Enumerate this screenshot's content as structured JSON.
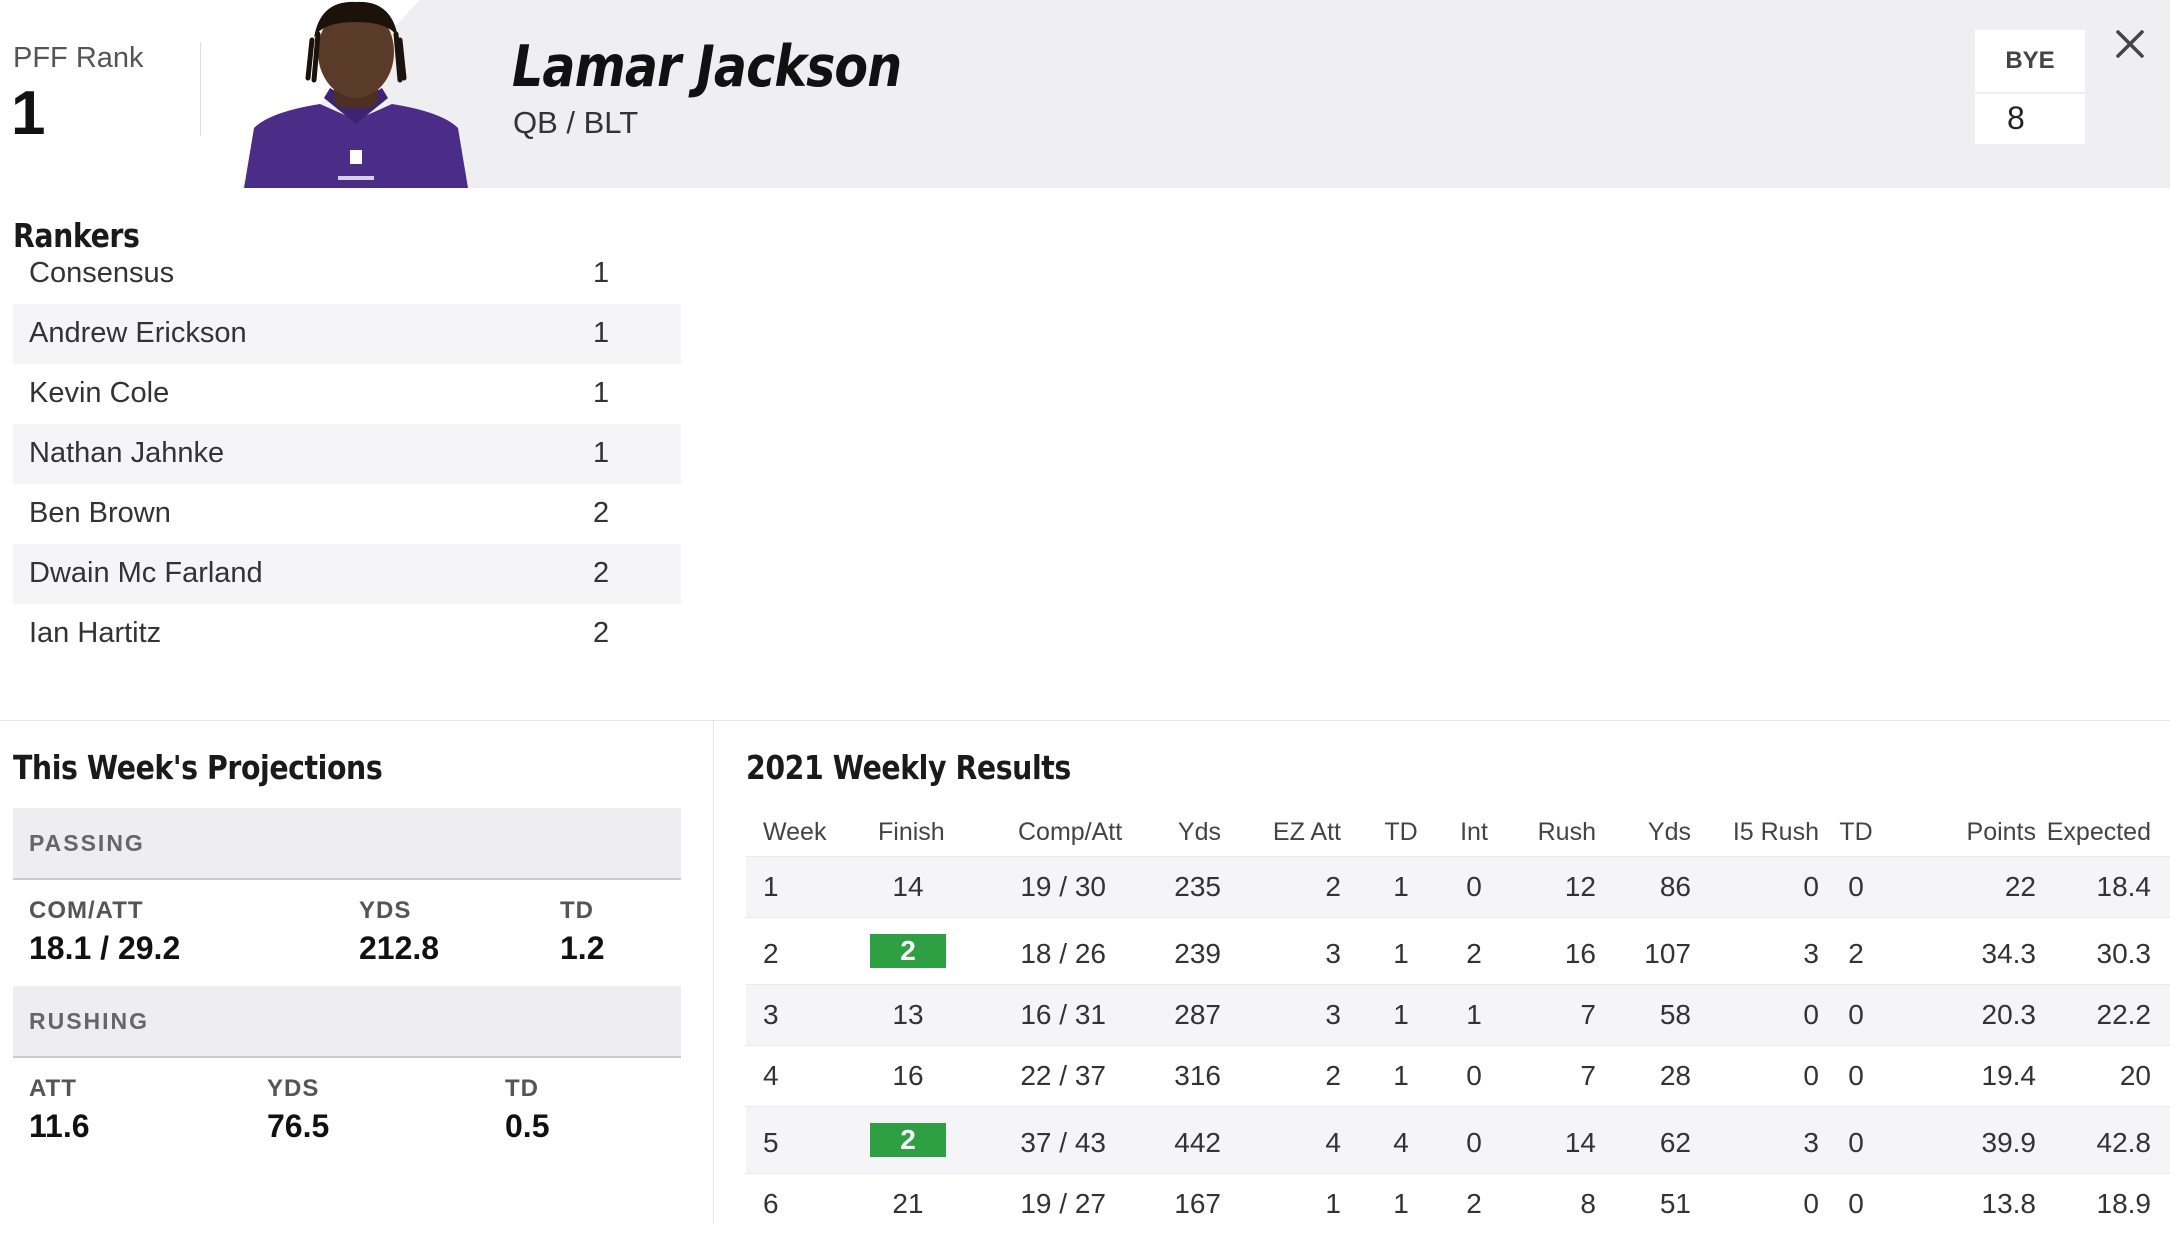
{
  "header": {
    "rank_label": "PFF Rank",
    "rank_value": "1",
    "player_name": "Lamar Jackson",
    "position_team": "QB / BLT",
    "bye_label": "BYE",
    "bye_value": "8",
    "team_color": "#4b2c86"
  },
  "rankers": {
    "title": "Rankers",
    "items": [
      {
        "name": "Consensus",
        "rank": "1"
      },
      {
        "name": "Andrew Erickson",
        "rank": "1"
      },
      {
        "name": "Kevin Cole",
        "rank": "1"
      },
      {
        "name": "Nathan Jahnke",
        "rank": "1"
      },
      {
        "name": "Ben Brown",
        "rank": "2"
      },
      {
        "name": "Dwain Mc Farland",
        "rank": "2"
      },
      {
        "name": "Ian Hartitz",
        "rank": "2"
      }
    ]
  },
  "projections": {
    "title": "This Week's Projections",
    "passing": {
      "label": "PASSING",
      "stats": [
        {
          "label": "COM/ATT",
          "value": "18.1 / 29.2"
        },
        {
          "label": "YDS",
          "value": "212.8"
        },
        {
          "label": "TD",
          "value": "1.2"
        }
      ]
    },
    "rushing": {
      "label": "RUSHING",
      "stats": [
        {
          "label": "ATT",
          "value": "11.6"
        },
        {
          "label": "YDS",
          "value": "76.5"
        },
        {
          "label": "TD",
          "value": "0.5"
        }
      ]
    }
  },
  "results": {
    "title": "2021 Weekly Results",
    "columns": [
      "Week",
      "Finish",
      "Comp/Att",
      "Yds",
      "EZ Att",
      "TD",
      "Int",
      "Rush",
      "Yds",
      "I5 Rush",
      "TD",
      "Points",
      "Expected"
    ],
    "highlight_color": "#2ea043",
    "rows": [
      {
        "week": "1",
        "finish": "14",
        "highlight": false,
        "comp_att": "19 / 30",
        "yds": "235",
        "ez_att": "2",
        "td": "1",
        "int": "0",
        "rush": "12",
        "rush_yds": "86",
        "i5_rush": "0",
        "rush_td": "0",
        "points": "22",
        "expected": "18.4"
      },
      {
        "week": "2",
        "finish": "2",
        "highlight": true,
        "comp_att": "18 / 26",
        "yds": "239",
        "ez_att": "3",
        "td": "1",
        "int": "2",
        "rush": "16",
        "rush_yds": "107",
        "i5_rush": "3",
        "rush_td": "2",
        "points": "34.3",
        "expected": "30.3"
      },
      {
        "week": "3",
        "finish": "13",
        "highlight": false,
        "comp_att": "16 / 31",
        "yds": "287",
        "ez_att": "3",
        "td": "1",
        "int": "1",
        "rush": "7",
        "rush_yds": "58",
        "i5_rush": "0",
        "rush_td": "0",
        "points": "20.3",
        "expected": "22.2"
      },
      {
        "week": "4",
        "finish": "16",
        "highlight": false,
        "comp_att": "22 / 37",
        "yds": "316",
        "ez_att": "2",
        "td": "1",
        "int": "0",
        "rush": "7",
        "rush_yds": "28",
        "i5_rush": "0",
        "rush_td": "0",
        "points": "19.4",
        "expected": "20"
      },
      {
        "week": "5",
        "finish": "2",
        "highlight": true,
        "comp_att": "37 / 43",
        "yds": "442",
        "ez_att": "4",
        "td": "4",
        "int": "0",
        "rush": "14",
        "rush_yds": "62",
        "i5_rush": "3",
        "rush_td": "0",
        "points": "39.9",
        "expected": "42.8"
      },
      {
        "week": "6",
        "finish": "21",
        "highlight": false,
        "comp_att": "19 / 27",
        "yds": "167",
        "ez_att": "1",
        "td": "1",
        "int": "2",
        "rush": "8",
        "rush_yds": "51",
        "i5_rush": "0",
        "rush_td": "0",
        "points": "13.8",
        "expected": "18.9"
      }
    ]
  }
}
